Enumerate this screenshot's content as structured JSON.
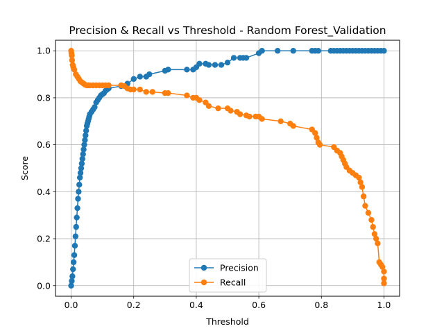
{
  "chart_data": {
    "type": "line",
    "title": "Precision & Recall vs Threshold - Random Forest_Validation",
    "xlabel": "Threshold",
    "ylabel": "Score",
    "xlim": [
      -0.05,
      1.05
    ],
    "ylim": [
      -0.045,
      1.045
    ],
    "xticks": [
      0.0,
      0.2,
      0.4,
      0.6,
      0.8,
      1.0
    ],
    "yticks": [
      0.0,
      0.2,
      0.4,
      0.6,
      0.8,
      1.0
    ],
    "xtick_labels": [
      "0.0",
      "0.2",
      "0.4",
      "0.6",
      "0.8",
      "1.0"
    ],
    "ytick_labels": [
      "0.0",
      "0.2",
      "0.4",
      "0.6",
      "0.8",
      "1.0"
    ],
    "grid": true,
    "legend_position": "bottom-center",
    "series": [
      {
        "name": "Precision",
        "color": "#1f77b4",
        "marker": "circle",
        "x": [
          0.0,
          0.002,
          0.004,
          0.006,
          0.008,
          0.01,
          0.012,
          0.014,
          0.016,
          0.018,
          0.02,
          0.022,
          0.024,
          0.026,
          0.028,
          0.03,
          0.032,
          0.034,
          0.036,
          0.038,
          0.04,
          0.042,
          0.044,
          0.046,
          0.048,
          0.05,
          0.052,
          0.054,
          0.056,
          0.058,
          0.06,
          0.065,
          0.07,
          0.075,
          0.08,
          0.085,
          0.09,
          0.095,
          0.1,
          0.105,
          0.11,
          0.115,
          0.12,
          0.16,
          0.18,
          0.2,
          0.22,
          0.24,
          0.25,
          0.3,
          0.31,
          0.37,
          0.39,
          0.4,
          0.41,
          0.43,
          0.44,
          0.46,
          0.48,
          0.5,
          0.52,
          0.54,
          0.55,
          0.56,
          0.6,
          0.61,
          0.66,
          0.71,
          0.77,
          0.78,
          0.79,
          0.83,
          0.84,
          0.85,
          0.86,
          0.87,
          0.88,
          0.89,
          0.9,
          0.91,
          0.92,
          0.93,
          0.94,
          0.95,
          0.96,
          0.97,
          0.98,
          0.99,
          1.0
        ],
        "y": [
          0.0,
          0.02,
          0.04,
          0.07,
          0.1,
          0.13,
          0.17,
          0.21,
          0.25,
          0.29,
          0.33,
          0.37,
          0.4,
          0.43,
          0.46,
          0.48,
          0.5,
          0.52,
          0.54,
          0.56,
          0.58,
          0.6,
          0.62,
          0.64,
          0.66,
          0.68,
          0.69,
          0.7,
          0.71,
          0.72,
          0.73,
          0.74,
          0.75,
          0.76,
          0.78,
          0.79,
          0.8,
          0.81,
          0.815,
          0.82,
          0.83,
          0.835,
          0.84,
          0.85,
          0.86,
          0.88,
          0.89,
          0.89,
          0.9,
          0.915,
          0.92,
          0.92,
          0.92,
          0.93,
          0.945,
          0.945,
          0.94,
          0.94,
          0.94,
          0.95,
          0.97,
          0.97,
          0.97,
          0.97,
          0.99,
          1.0,
          1.0,
          1.0,
          1.0,
          1.0,
          1.0,
          1.0,
          1.0,
          1.0,
          1.0,
          1.0,
          1.0,
          1.0,
          1.0,
          1.0,
          1.0,
          1.0,
          1.0,
          1.0,
          1.0,
          1.0,
          1.0,
          1.0,
          1.0
        ]
      },
      {
        "name": "Recall",
        "color": "#ff7f0e",
        "marker": "circle",
        "x": [
          0.0,
          0.001,
          0.002,
          0.003,
          0.005,
          0.007,
          0.01,
          0.015,
          0.02,
          0.025,
          0.03,
          0.035,
          0.04,
          0.045,
          0.05,
          0.055,
          0.06,
          0.07,
          0.08,
          0.09,
          0.1,
          0.11,
          0.12,
          0.16,
          0.17,
          0.18,
          0.19,
          0.2,
          0.22,
          0.24,
          0.26,
          0.3,
          0.31,
          0.37,
          0.39,
          0.4,
          0.41,
          0.43,
          0.44,
          0.47,
          0.5,
          0.51,
          0.53,
          0.54,
          0.56,
          0.57,
          0.59,
          0.6,
          0.61,
          0.67,
          0.7,
          0.71,
          0.77,
          0.78,
          0.785,
          0.79,
          0.795,
          0.84,
          0.85,
          0.86,
          0.865,
          0.87,
          0.875,
          0.88,
          0.89,
          0.9,
          0.91,
          0.92,
          0.925,
          0.93,
          0.935,
          0.94,
          0.95,
          0.96,
          0.965,
          0.97,
          0.975,
          0.98,
          0.985,
          0.99,
          0.995,
          1.0,
          1.0,
          1.0
        ],
        "y": [
          1.0,
          0.99,
          0.98,
          0.96,
          0.94,
          0.93,
          0.92,
          0.9,
          0.89,
          0.88,
          0.87,
          0.865,
          0.86,
          0.855,
          0.853,
          0.853,
          0.853,
          0.853,
          0.853,
          0.853,
          0.853,
          0.853,
          0.853,
          0.853,
          0.85,
          0.84,
          0.835,
          0.835,
          0.835,
          0.825,
          0.825,
          0.82,
          0.82,
          0.81,
          0.8,
          0.8,
          0.79,
          0.78,
          0.765,
          0.755,
          0.755,
          0.745,
          0.74,
          0.73,
          0.725,
          0.72,
          0.72,
          0.72,
          0.71,
          0.7,
          0.69,
          0.68,
          0.665,
          0.65,
          0.63,
          0.61,
          0.6,
          0.59,
          0.575,
          0.565,
          0.55,
          0.535,
          0.52,
          0.505,
          0.49,
          0.48,
          0.47,
          0.46,
          0.44,
          0.42,
          0.38,
          0.34,
          0.31,
          0.28,
          0.25,
          0.22,
          0.2,
          0.18,
          0.1,
          0.09,
          0.08,
          0.06,
          0.03,
          0.01
        ]
      }
    ]
  }
}
